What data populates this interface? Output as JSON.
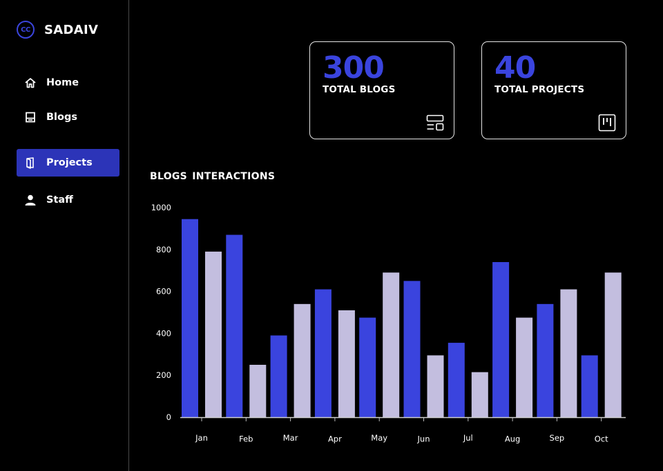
{
  "brand": {
    "logo_text": "CC",
    "name": "SADAIV"
  },
  "nav": [
    {
      "label": "Home",
      "icon": "home-icon",
      "active": false
    },
    {
      "label": "Blogs",
      "icon": "blogs-icon",
      "active": false
    },
    {
      "label": "Projects",
      "icon": "projects-icon",
      "active": true
    },
    {
      "label": "Staff",
      "icon": "staff-icon",
      "active": false
    }
  ],
  "stats": [
    {
      "value": "300",
      "label": "TOTAL BLOGS",
      "icon": "blog-layout-icon"
    },
    {
      "value": "40",
      "label": "TOTAL PROJECTS",
      "icon": "kanban-board-icon"
    }
  ],
  "colors": {
    "accent": "#3a44de",
    "active_nav": "#2c34b8",
    "series_secondary": "#c3bedf",
    "background": "#000000"
  },
  "chart_data": {
    "type": "bar",
    "title": "BLOGS  INTERACTIONS",
    "categories": [
      "Jan",
      "Feb",
      "Mar",
      "Apr",
      "May",
      "Jun",
      "Jul",
      "Aug",
      "Sep",
      "Oct"
    ],
    "series": [
      {
        "values": [
          945,
          870,
          390,
          610,
          475,
          650,
          355,
          740,
          540,
          295
        ],
        "color": "#3a44de"
      },
      {
        "values": [
          790,
          250,
          540,
          510,
          690,
          295,
          215,
          475,
          610,
          690
        ],
        "color": "#c3bedf"
      }
    ],
    "yticks": [
      0,
      200,
      400,
      600,
      800,
      1000
    ],
    "ylim": [
      0,
      1000
    ],
    "grid": false,
    "legend": "none"
  }
}
